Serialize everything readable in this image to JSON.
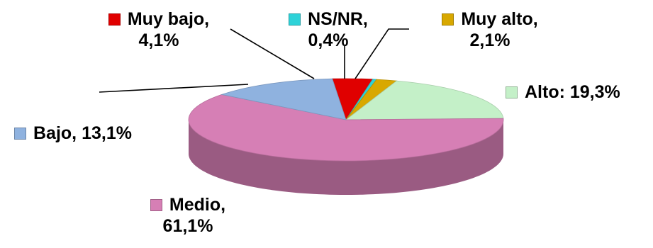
{
  "chart_data": {
    "type": "pie",
    "style": "3d",
    "title": "",
    "slices": [
      {
        "category": "Muy bajo",
        "value": 4.1,
        "text": "4,1%",
        "name_text": "Muy bajo,",
        "color": "#e00000"
      },
      {
        "category": "NS/NR",
        "value": 0.4,
        "text": "0,4%",
        "name_text": "NS/NR,",
        "color": "#2ed2d8"
      },
      {
        "category": "Muy alto",
        "value": 2.1,
        "text": "2,1%",
        "name_text": "Muy alto,",
        "color": "#d8a800"
      },
      {
        "category": "Alto",
        "value": 19.3,
        "text": "Alto: 19,3%",
        "name_text": "",
        "color": "#c4f0c8"
      },
      {
        "category": "Medio",
        "value": 61.1,
        "text": "61,1%",
        "name_text": "Medio,",
        "color": "#d67fb5"
      },
      {
        "category": "Bajo",
        "value": 13.1,
        "text": "Bajo, 13,1%",
        "name_text": "",
        "color": "#8fb2df"
      }
    ]
  }
}
